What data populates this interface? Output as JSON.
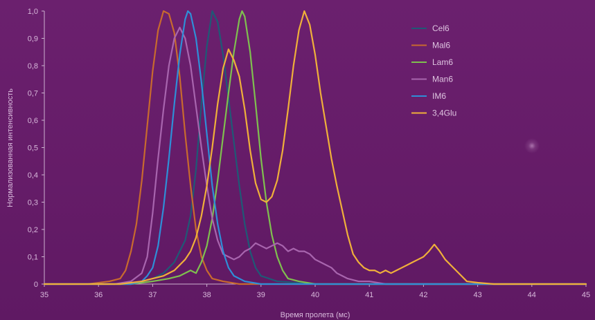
{
  "chart_data": {
    "type": "line",
    "title": "",
    "xlabel": "Время пролета (мс)",
    "ylabel": "Нормализованная интенсивность",
    "xlim": [
      35,
      45
    ],
    "ylim": [
      0,
      1
    ],
    "x_ticks": [
      "35",
      "36",
      "37",
      "38",
      "39",
      "40",
      "41",
      "42",
      "43",
      "44",
      "45"
    ],
    "y_ticks": [
      "0",
      "0,1",
      "0,2",
      "0,3",
      "0,4",
      "0,5",
      "0,6",
      "0,7",
      "0,8",
      "0,9",
      "1,0"
    ],
    "grid": false,
    "legend_position": "top-right",
    "series": [
      {
        "name": "Cel6",
        "color": "#1f5a76",
        "points": [
          [
            35.0,
            0
          ],
          [
            36.5,
            0
          ],
          [
            36.8,
            0.01
          ],
          [
            37.0,
            0.02
          ],
          [
            37.2,
            0.04
          ],
          [
            37.4,
            0.08
          ],
          [
            37.6,
            0.16
          ],
          [
            37.7,
            0.25
          ],
          [
            37.8,
            0.42
          ],
          [
            37.9,
            0.66
          ],
          [
            38.0,
            0.87
          ],
          [
            38.1,
            1.0
          ],
          [
            38.2,
            0.96
          ],
          [
            38.3,
            0.84
          ],
          [
            38.4,
            0.68
          ],
          [
            38.5,
            0.52
          ],
          [
            38.6,
            0.36
          ],
          [
            38.7,
            0.22
          ],
          [
            38.8,
            0.12
          ],
          [
            38.9,
            0.06
          ],
          [
            39.0,
            0.03
          ],
          [
            39.3,
            0.01
          ],
          [
            40.0,
            0
          ],
          [
            45.0,
            0
          ]
        ]
      },
      {
        "name": "Mal6",
        "color": "#c86a2e",
        "points": [
          [
            35.0,
            0
          ],
          [
            35.8,
            0
          ],
          [
            36.2,
            0.01
          ],
          [
            36.4,
            0.02
          ],
          [
            36.5,
            0.05
          ],
          [
            36.6,
            0.12
          ],
          [
            36.7,
            0.22
          ],
          [
            36.8,
            0.38
          ],
          [
            36.9,
            0.58
          ],
          [
            37.0,
            0.78
          ],
          [
            37.1,
            0.93
          ],
          [
            37.2,
            1.0
          ],
          [
            37.3,
            0.99
          ],
          [
            37.4,
            0.92
          ],
          [
            37.5,
            0.76
          ],
          [
            37.6,
            0.55
          ],
          [
            37.7,
            0.36
          ],
          [
            37.8,
            0.2
          ],
          [
            37.9,
            0.1
          ],
          [
            38.0,
            0.05
          ],
          [
            38.1,
            0.02
          ],
          [
            38.3,
            0.01
          ],
          [
            38.6,
            0
          ],
          [
            45.0,
            0
          ]
        ]
      },
      {
        "name": "Lam6",
        "color": "#7fc04f",
        "points": [
          [
            35.0,
            0
          ],
          [
            36.6,
            0
          ],
          [
            37.0,
            0.01
          ],
          [
            37.3,
            0.02
          ],
          [
            37.5,
            0.03
          ],
          [
            37.7,
            0.05
          ],
          [
            37.8,
            0.04
          ],
          [
            37.9,
            0.08
          ],
          [
            38.0,
            0.14
          ],
          [
            38.1,
            0.24
          ],
          [
            38.2,
            0.38
          ],
          [
            38.3,
            0.54
          ],
          [
            38.4,
            0.7
          ],
          [
            38.5,
            0.85
          ],
          [
            38.6,
            0.97
          ],
          [
            38.65,
            1.0
          ],
          [
            38.7,
            0.98
          ],
          [
            38.8,
            0.85
          ],
          [
            38.9,
            0.66
          ],
          [
            39.0,
            0.46
          ],
          [
            39.1,
            0.3
          ],
          [
            39.2,
            0.18
          ],
          [
            39.3,
            0.1
          ],
          [
            39.4,
            0.05
          ],
          [
            39.5,
            0.02
          ],
          [
            39.7,
            0.01
          ],
          [
            40.0,
            0
          ],
          [
            45.0,
            0
          ]
        ]
      },
      {
        "name": "Man6",
        "color": "#a865ae",
        "points": [
          [
            35.0,
            0
          ],
          [
            36.3,
            0
          ],
          [
            36.6,
            0.01
          ],
          [
            36.8,
            0.04
          ],
          [
            36.9,
            0.1
          ],
          [
            37.0,
            0.26
          ],
          [
            37.1,
            0.46
          ],
          [
            37.2,
            0.64
          ],
          [
            37.3,
            0.8
          ],
          [
            37.4,
            0.9
          ],
          [
            37.5,
            0.94
          ],
          [
            37.6,
            0.9
          ],
          [
            37.7,
            0.8
          ],
          [
            37.8,
            0.65
          ],
          [
            37.9,
            0.5
          ],
          [
            38.0,
            0.36
          ],
          [
            38.1,
            0.24
          ],
          [
            38.2,
            0.16
          ],
          [
            38.3,
            0.11
          ],
          [
            38.4,
            0.1
          ],
          [
            38.5,
            0.09
          ],
          [
            38.6,
            0.1
          ],
          [
            38.7,
            0.12
          ],
          [
            38.8,
            0.13
          ],
          [
            38.9,
            0.15
          ],
          [
            39.0,
            0.14
          ],
          [
            39.1,
            0.13
          ],
          [
            39.2,
            0.14
          ],
          [
            39.3,
            0.15
          ],
          [
            39.4,
            0.14
          ],
          [
            39.5,
            0.12
          ],
          [
            39.6,
            0.13
          ],
          [
            39.7,
            0.12
          ],
          [
            39.8,
            0.12
          ],
          [
            39.9,
            0.11
          ],
          [
            40.0,
            0.09
          ],
          [
            40.1,
            0.08
          ],
          [
            40.2,
            0.07
          ],
          [
            40.3,
            0.06
          ],
          [
            40.4,
            0.04
          ],
          [
            40.5,
            0.03
          ],
          [
            40.6,
            0.02
          ],
          [
            40.8,
            0.01
          ],
          [
            41.0,
            0.01
          ],
          [
            41.3,
            0
          ],
          [
            45.0,
            0
          ]
        ]
      },
      {
        "name": "IM6",
        "color": "#2e8fd8",
        "points": [
          [
            35.0,
            0
          ],
          [
            36.6,
            0
          ],
          [
            36.8,
            0.01
          ],
          [
            36.9,
            0.03
          ],
          [
            37.0,
            0.06
          ],
          [
            37.1,
            0.14
          ],
          [
            37.2,
            0.28
          ],
          [
            37.3,
            0.46
          ],
          [
            37.4,
            0.66
          ],
          [
            37.5,
            0.84
          ],
          [
            37.6,
            0.97
          ],
          [
            37.65,
            1.0
          ],
          [
            37.7,
            0.99
          ],
          [
            37.8,
            0.9
          ],
          [
            37.9,
            0.74
          ],
          [
            38.0,
            0.55
          ],
          [
            38.1,
            0.36
          ],
          [
            38.2,
            0.22
          ],
          [
            38.3,
            0.12
          ],
          [
            38.4,
            0.06
          ],
          [
            38.5,
            0.03
          ],
          [
            38.7,
            0.01
          ],
          [
            39.0,
            0
          ],
          [
            45.0,
            0
          ]
        ]
      },
      {
        "name": "3,4Glu",
        "color": "#f0b03a",
        "points": [
          [
            35.0,
            0
          ],
          [
            36.4,
            0
          ],
          [
            36.8,
            0.01
          ],
          [
            37.0,
            0.02
          ],
          [
            37.2,
            0.03
          ],
          [
            37.4,
            0.05
          ],
          [
            37.6,
            0.09
          ],
          [
            37.7,
            0.12
          ],
          [
            37.8,
            0.17
          ],
          [
            37.9,
            0.25
          ],
          [
            38.0,
            0.36
          ],
          [
            38.1,
            0.5
          ],
          [
            38.2,
            0.66
          ],
          [
            38.3,
            0.79
          ],
          [
            38.4,
            0.86
          ],
          [
            38.5,
            0.82
          ],
          [
            38.6,
            0.76
          ],
          [
            38.7,
            0.64
          ],
          [
            38.8,
            0.49
          ],
          [
            38.9,
            0.37
          ],
          [
            39.0,
            0.31
          ],
          [
            39.1,
            0.3
          ],
          [
            39.2,
            0.32
          ],
          [
            39.3,
            0.38
          ],
          [
            39.4,
            0.49
          ],
          [
            39.5,
            0.64
          ],
          [
            39.6,
            0.8
          ],
          [
            39.7,
            0.93
          ],
          [
            39.8,
            1.0
          ],
          [
            39.9,
            0.95
          ],
          [
            40.0,
            0.84
          ],
          [
            40.1,
            0.7
          ],
          [
            40.2,
            0.58
          ],
          [
            40.3,
            0.46
          ],
          [
            40.4,
            0.36
          ],
          [
            40.5,
            0.27
          ],
          [
            40.6,
            0.18
          ],
          [
            40.7,
            0.11
          ],
          [
            40.8,
            0.08
          ],
          [
            40.9,
            0.06
          ],
          [
            41.0,
            0.05
          ],
          [
            41.1,
            0.05
          ],
          [
            41.2,
            0.04
          ],
          [
            41.3,
            0.05
          ],
          [
            41.4,
            0.04
          ],
          [
            41.5,
            0.05
          ],
          [
            41.6,
            0.06
          ],
          [
            41.7,
            0.07
          ],
          [
            41.8,
            0.08
          ],
          [
            41.9,
            0.09
          ],
          [
            42.0,
            0.1
          ],
          [
            42.1,
            0.12
          ],
          [
            42.2,
            0.145
          ],
          [
            42.3,
            0.12
          ],
          [
            42.4,
            0.09
          ],
          [
            42.5,
            0.07
          ],
          [
            42.6,
            0.05
          ],
          [
            42.7,
            0.03
          ],
          [
            42.8,
            0.01
          ],
          [
            43.0,
            0.005
          ],
          [
            43.3,
            0
          ],
          [
            45.0,
            0
          ]
        ]
      }
    ]
  }
}
